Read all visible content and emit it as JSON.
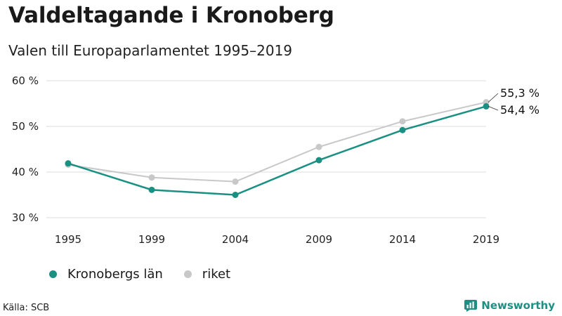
{
  "header": {
    "title": "Valdeltagande i Kronoberg",
    "subtitle": "Valen till Europaparlamentet 1995–2019"
  },
  "chart_data": {
    "type": "line",
    "x": [
      "1995",
      "1999",
      "2004",
      "2009",
      "2014",
      "2019"
    ],
    "series": [
      {
        "name": "Kronobergs län",
        "color": "#1a9082",
        "values": [
          41.9,
          36.1,
          35.0,
          42.6,
          49.2,
          54.4
        ],
        "end_label": "54,4 %"
      },
      {
        "name": "riket",
        "color": "#c8c8c8",
        "values": [
          41.6,
          38.8,
          37.9,
          45.5,
          51.1,
          55.3
        ],
        "end_label": "55,3 %"
      }
    ],
    "ylim": [
      30,
      60
    ],
    "yticks": [
      30,
      40,
      50,
      60
    ],
    "ytick_labels": [
      "30 %",
      "40 %",
      "50 %",
      "60 %"
    ],
    "grid": true,
    "legend": "bottom-left"
  },
  "footer": {
    "source": "Källa: SCB",
    "brand": "Newsworthy"
  }
}
